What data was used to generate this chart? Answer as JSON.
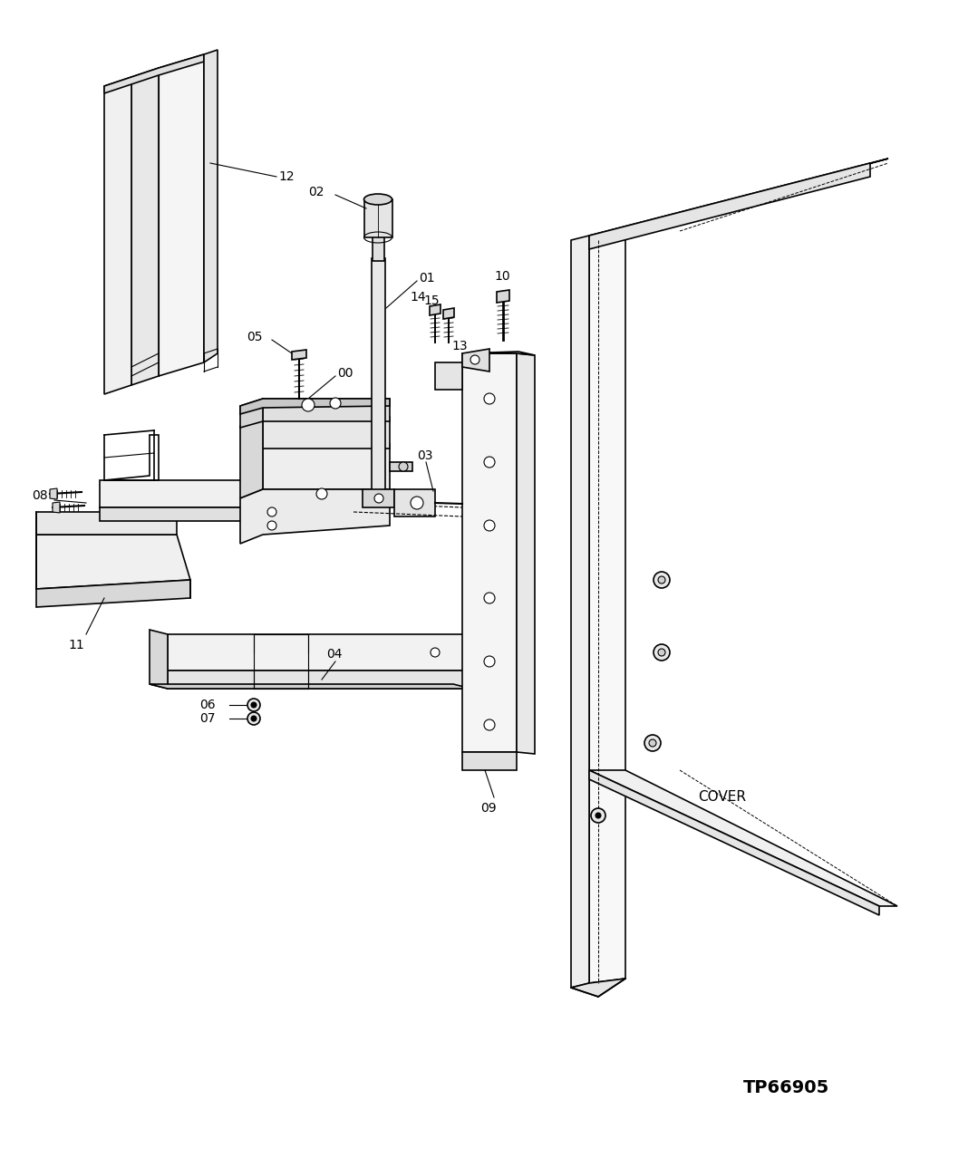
{
  "bg_color": "#ffffff",
  "line_color": "#000000",
  "fig_width": 10.79,
  "fig_height": 12.78,
  "dpi": 100,
  "title_code": "TP66905",
  "cover_label": "COVER"
}
